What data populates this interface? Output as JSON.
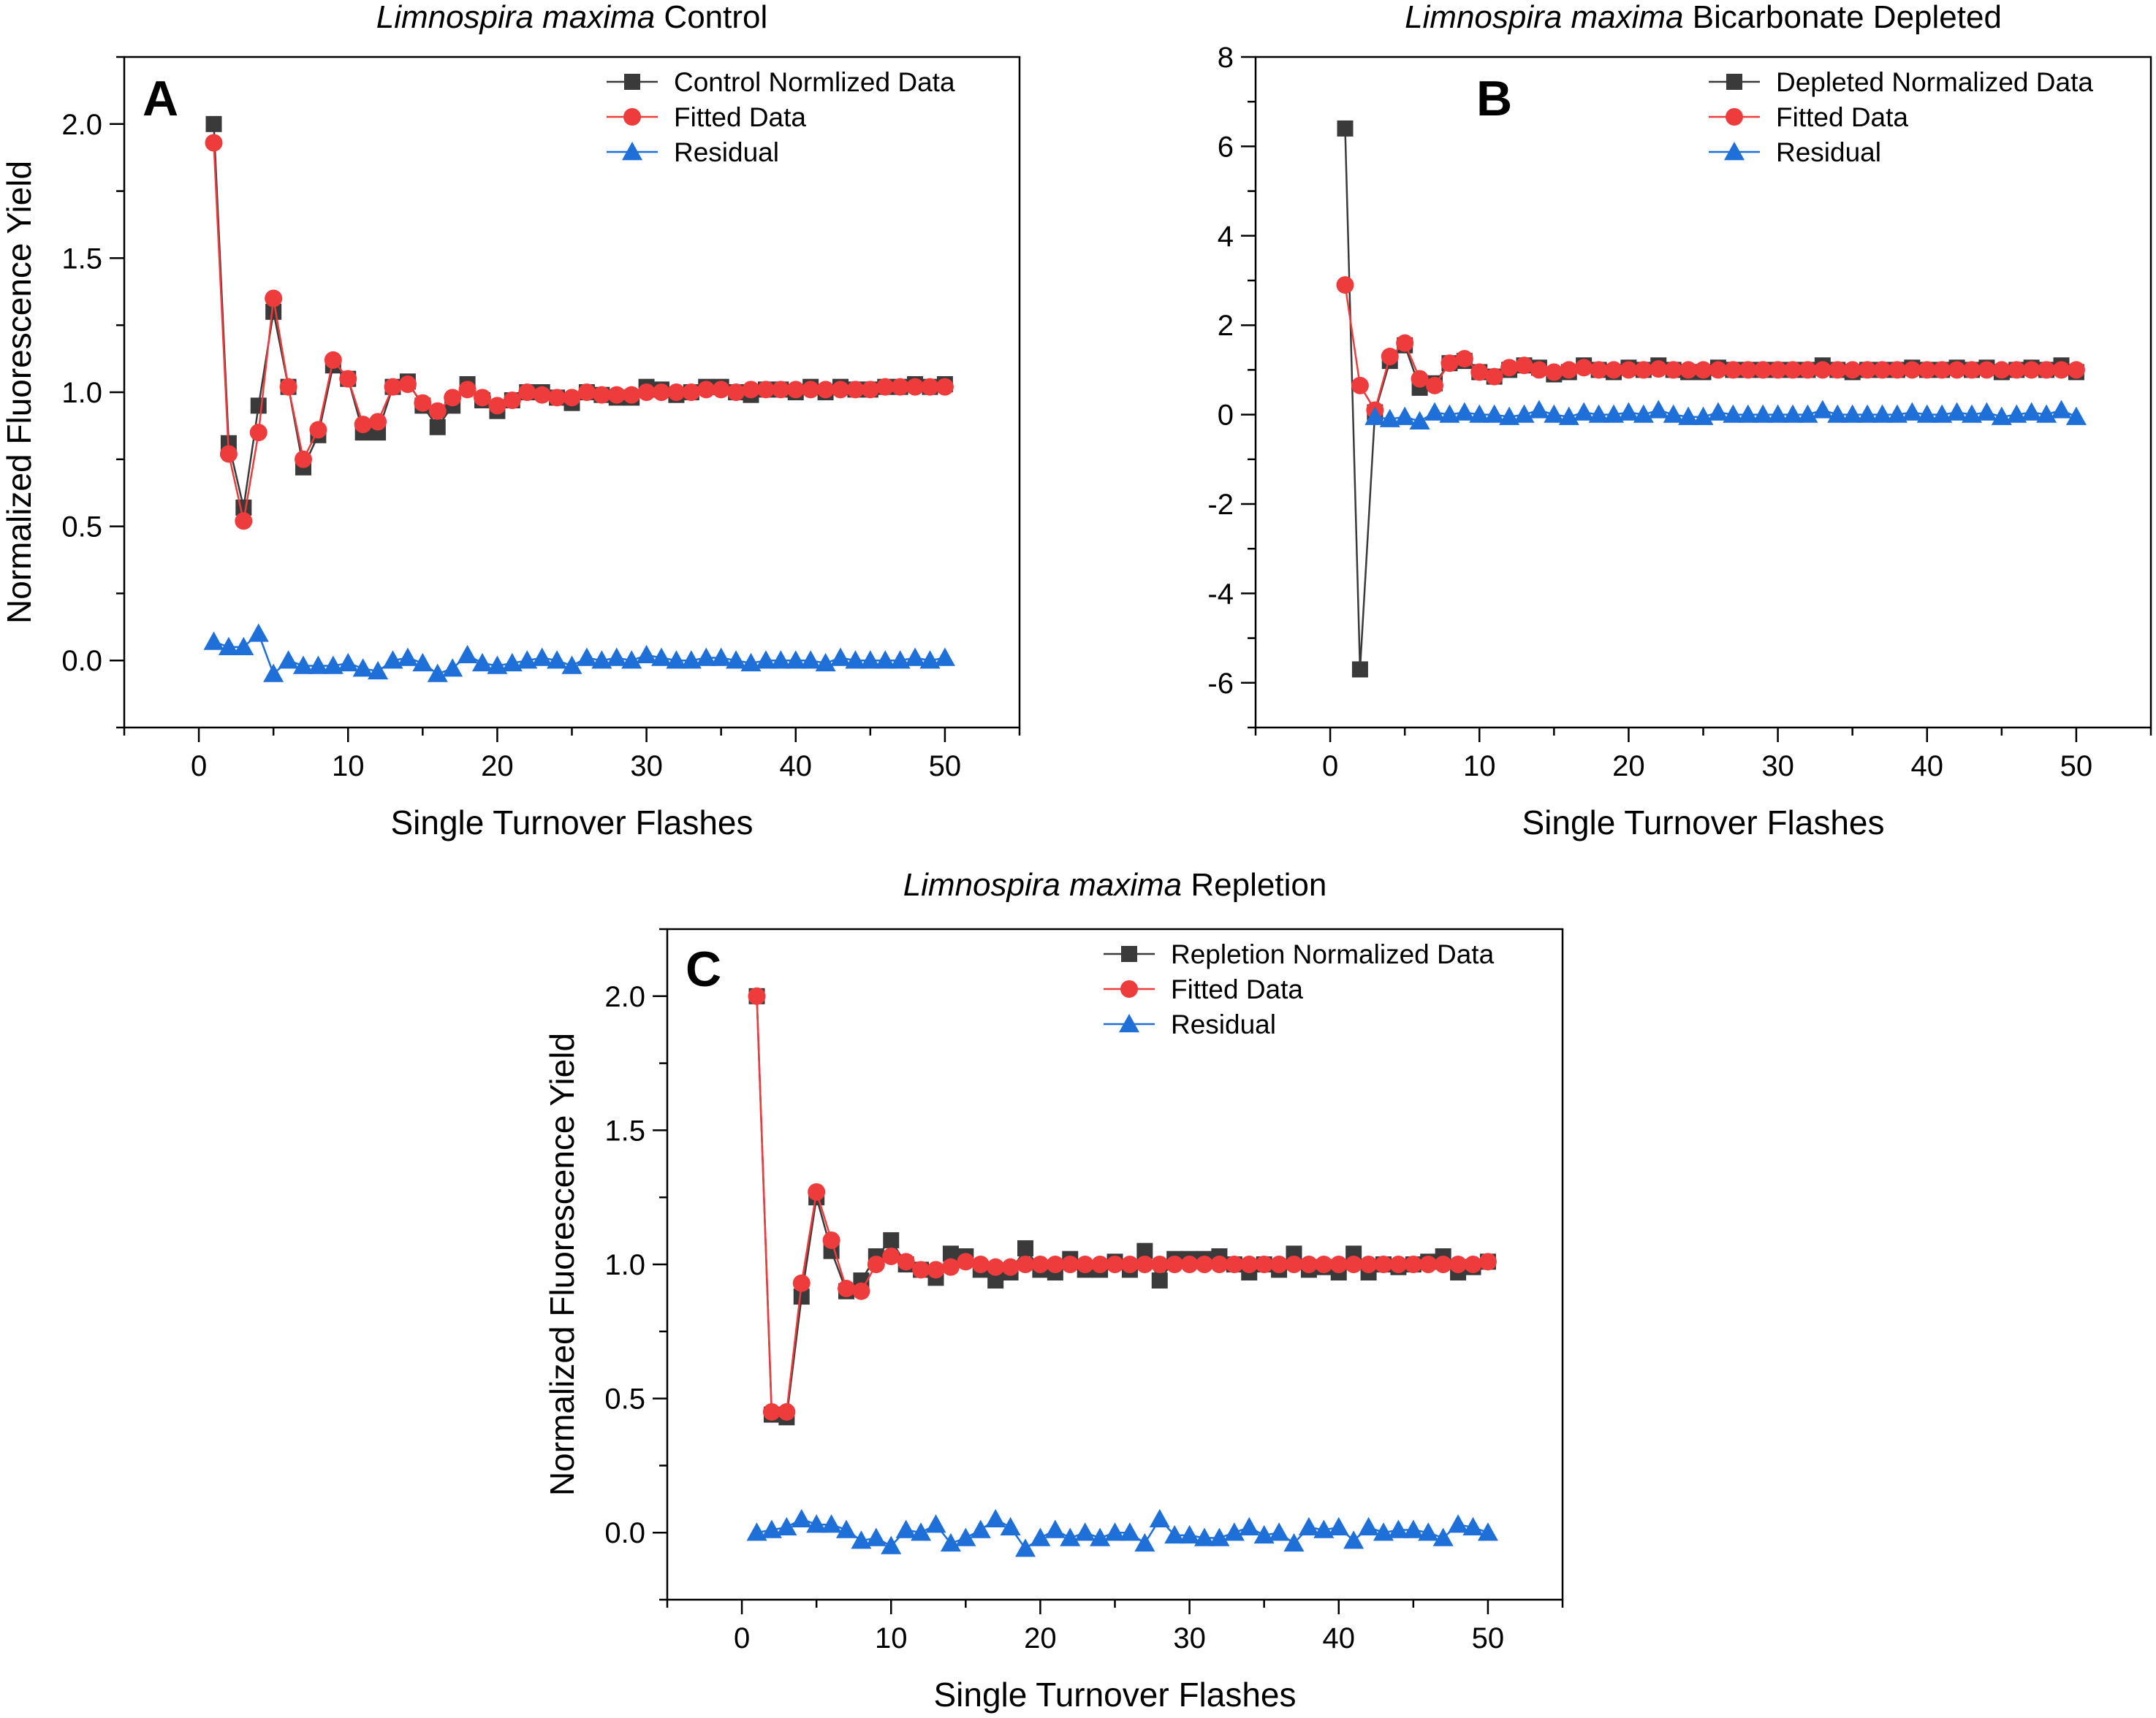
{
  "chart_data": [
    {
      "type": "scatter",
      "panel": "A",
      "title": {
        "italic": "Limnospira maxima",
        "rest": " Control"
      },
      "xlabel": "Single Turnover Flashes",
      "ylabel": "Normalized Fluorescence Yield",
      "xlim": [
        -5,
        55
      ],
      "ylim": [
        -0.25,
        2.25
      ],
      "xticks": [
        0,
        10,
        20,
        30,
        40,
        50
      ],
      "yticks": [
        0.0,
        0.5,
        1.0,
        1.5,
        2.0
      ],
      "ytick_labels": [
        "0.0",
        "0.5",
        "1.0",
        "1.5",
        "2.0"
      ],
      "legend_position": "top-right",
      "x": [
        1,
        2,
        3,
        4,
        5,
        6,
        7,
        8,
        9,
        10,
        11,
        12,
        13,
        14,
        15,
        16,
        17,
        18,
        19,
        20,
        21,
        22,
        23,
        24,
        25,
        26,
        27,
        28,
        29,
        30,
        31,
        32,
        33,
        34,
        35,
        36,
        37,
        38,
        39,
        40,
        41,
        42,
        43,
        44,
        45,
        46,
        47,
        48,
        49,
        50
      ],
      "series": [
        {
          "name": "Control Normlized Data",
          "marker": "square",
          "color": "#3a3a3a",
          "values": [
            2.0,
            0.81,
            0.57,
            0.95,
            1.3,
            1.02,
            0.72,
            0.84,
            1.1,
            1.05,
            0.85,
            0.85,
            1.02,
            1.04,
            0.95,
            0.87,
            0.95,
            1.03,
            0.97,
            0.93,
            0.97,
            1.0,
            1.0,
            0.98,
            0.96,
            1.0,
            0.99,
            0.98,
            0.98,
            1.02,
            1.01,
            0.99,
            1.0,
            1.02,
            1.02,
            1.0,
            0.99,
            1.01,
            1.01,
            1.0,
            1.02,
            1.0,
            1.02,
            1.01,
            1.01,
            1.02,
            1.02,
            1.03,
            1.02,
            1.03
          ]
        },
        {
          "name": "Fitted Data",
          "marker": "circle",
          "color": "#ee3b3b",
          "values": [
            1.93,
            0.77,
            0.52,
            0.85,
            1.35,
            1.02,
            0.75,
            0.86,
            1.12,
            1.05,
            0.88,
            0.89,
            1.02,
            1.03,
            0.96,
            0.93,
            0.98,
            1.01,
            0.98,
            0.95,
            0.97,
            1.0,
            0.99,
            0.98,
            0.98,
            1.0,
            0.99,
            0.99,
            0.99,
            1.0,
            1.0,
            1.0,
            1.0,
            1.01,
            1.01,
            1.0,
            1.01,
            1.01,
            1.01,
            1.01,
            1.01,
            1.01,
            1.01,
            1.01,
            1.01,
            1.02,
            1.02,
            1.02,
            1.02,
            1.02
          ]
        },
        {
          "name": "Residual",
          "marker": "triangle",
          "color": "#1f6fd8",
          "values": [
            0.07,
            0.05,
            0.05,
            0.1,
            -0.05,
            0.0,
            -0.02,
            -0.02,
            -0.02,
            -0.01,
            -0.03,
            -0.04,
            0.0,
            0.01,
            -0.01,
            -0.05,
            -0.03,
            0.02,
            -0.01,
            -0.02,
            -0.01,
            0.0,
            0.01,
            0.0,
            -0.02,
            0.01,
            0.0,
            0.01,
            0.0,
            0.02,
            0.01,
            0.0,
            0.0,
            0.01,
            0.01,
            0.0,
            -0.01,
            0.0,
            0.0,
            0.0,
            0.0,
            -0.01,
            0.01,
            0.0,
            0.0,
            0.0,
            0.0,
            0.01,
            0.0,
            0.01
          ]
        }
      ]
    },
    {
      "type": "scatter",
      "panel": "B",
      "title": {
        "italic": "Limnospira maxima",
        "rest": " Bicarbonate Depleted"
      },
      "xlabel": "Single Turnover Flashes",
      "ylabel": "",
      "xlim": [
        -5,
        55
      ],
      "ylim": [
        -7,
        8
      ],
      "xticks": [
        0,
        10,
        20,
        30,
        40,
        50
      ],
      "yticks": [
        -6,
        -4,
        -2,
        0,
        2,
        4,
        6,
        8
      ],
      "ytick_labels": [
        "-6",
        "-4",
        "-2",
        "0",
        "2",
        "4",
        "6",
        "8"
      ],
      "legend_position": "top-right",
      "x": [
        1,
        2,
        3,
        4,
        5,
        6,
        7,
        8,
        9,
        10,
        11,
        12,
        13,
        14,
        15,
        16,
        17,
        18,
        19,
        20,
        21,
        22,
        23,
        24,
        25,
        26,
        27,
        28,
        29,
        30,
        31,
        32,
        33,
        34,
        35,
        36,
        37,
        38,
        39,
        40,
        41,
        42,
        43,
        44,
        45,
        46,
        47,
        48,
        49,
        50
      ],
      "series": [
        {
          "name": "Depleted Normalized Data",
          "marker": "square",
          "color": "#3a3a3a",
          "values": [
            6.4,
            -5.7,
            0.05,
            1.2,
            1.55,
            0.6,
            0.7,
            1.15,
            1.2,
            0.95,
            0.85,
            1.0,
            1.1,
            1.05,
            0.9,
            0.95,
            1.1,
            1.0,
            0.95,
            1.05,
            1.0,
            1.1,
            1.0,
            0.95,
            0.95,
            1.05,
            1.0,
            1.0,
            1.0,
            1.0,
            1.0,
            1.0,
            1.1,
            1.0,
            0.95,
            1.0,
            1.0,
            1.0,
            1.05,
            1.0,
            1.0,
            1.05,
            1.0,
            1.05,
            0.95,
            1.0,
            1.05,
            1.0,
            1.1,
            0.95
          ]
        },
        {
          "name": "Fitted Data",
          "marker": "circle",
          "color": "#ee3b3b",
          "values": [
            2.9,
            0.65,
            0.1,
            1.3,
            1.6,
            0.8,
            0.65,
            1.15,
            1.25,
            0.95,
            0.85,
            1.05,
            1.1,
            1.0,
            0.95,
            1.0,
            1.05,
            1.0,
            1.0,
            1.0,
            1.0,
            1.02,
            1.0,
            1.0,
            1.0,
            1.0,
            1.0,
            1.0,
            1.0,
            1.0,
            1.0,
            1.0,
            1.0,
            1.0,
            1.0,
            1.0,
            1.0,
            1.0,
            1.0,
            1.0,
            1.0,
            1.0,
            1.0,
            1.0,
            1.0,
            1.0,
            1.0,
            1.0,
            1.0,
            1.0
          ]
        },
        {
          "name": "Residual",
          "marker": "triangle",
          "color": "#1f6fd8",
          "values": [
            null,
            null,
            -0.05,
            -0.1,
            -0.05,
            -0.15,
            0.05,
            0.0,
            0.05,
            0.0,
            0.0,
            -0.05,
            0.0,
            0.1,
            0.0,
            -0.05,
            0.05,
            0.0,
            0.0,
            0.05,
            0.0,
            0.1,
            0.0,
            -0.05,
            -0.05,
            0.05,
            0.0,
            0.0,
            0.0,
            0.0,
            0.0,
            0.0,
            0.1,
            0.0,
            0.0,
            0.0,
            0.0,
            0.0,
            0.05,
            0.0,
            0.0,
            0.05,
            0.0,
            0.05,
            -0.05,
            0.0,
            0.05,
            0.0,
            0.1,
            -0.05
          ]
        }
      ]
    },
    {
      "type": "scatter",
      "panel": "C",
      "title": {
        "italic": "Limnospira maxima",
        "rest": " Repletion"
      },
      "xlabel": "Single Turnover Flashes",
      "ylabel": "Normalized Fluorescence Yield",
      "xlim": [
        -5,
        55
      ],
      "ylim": [
        -0.25,
        2.25
      ],
      "xticks": [
        0,
        10,
        20,
        30,
        40,
        50
      ],
      "yticks": [
        0.0,
        0.5,
        1.0,
        1.5,
        2.0
      ],
      "ytick_labels": [
        "0.0",
        "0.5",
        "1.0",
        "1.5",
        "2.0"
      ],
      "legend_position": "top-right",
      "x": [
        1,
        2,
        3,
        4,
        5,
        6,
        7,
        8,
        9,
        10,
        11,
        12,
        13,
        14,
        15,
        16,
        17,
        18,
        19,
        20,
        21,
        22,
        23,
        24,
        25,
        26,
        27,
        28,
        29,
        30,
        31,
        32,
        33,
        34,
        35,
        36,
        37,
        38,
        39,
        40,
        41,
        42,
        43,
        44,
        45,
        46,
        47,
        48,
        49,
        50
      ],
      "series": [
        {
          "name": "Repletion Normalized Data",
          "marker": "square",
          "color": "#3a3a3a",
          "values": [
            2.0,
            0.44,
            0.43,
            0.88,
            1.25,
            1.05,
            0.9,
            0.94,
            1.03,
            1.09,
            1.0,
            0.98,
            0.95,
            1.04,
            1.03,
            0.98,
            0.94,
            0.97,
            1.06,
            0.98,
            0.97,
            1.02,
            0.98,
            0.98,
            1.01,
            0.98,
            1.05,
            0.94,
            1.02,
            1.02,
            1.02,
            1.03,
            1.0,
            0.97,
            1.0,
            0.98,
            1.04,
            0.98,
            0.99,
            0.97,
            1.04,
            0.97,
            1.0,
            0.99,
            1.0,
            1.01,
            1.03,
            0.97,
            0.99,
            1.01
          ]
        },
        {
          "name": "Fitted Data",
          "marker": "circle",
          "color": "#ee3b3b",
          "values": [
            2.0,
            0.45,
            0.45,
            0.93,
            1.27,
            1.09,
            0.91,
            0.9,
            1.0,
            1.03,
            1.01,
            0.98,
            0.98,
            0.99,
            1.01,
            1.0,
            0.99,
            0.99,
            1.0,
            1.0,
            1.0,
            1.0,
            1.0,
            1.0,
            1.0,
            1.0,
            1.0,
            1.0,
            1.0,
            1.0,
            1.0,
            1.0,
            1.0,
            1.0,
            1.0,
            1.0,
            1.0,
            1.0,
            1.0,
            1.0,
            1.0,
            1.0,
            1.0,
            1.0,
            1.0,
            1.0,
            1.0,
            1.0,
            1.0,
            1.01
          ]
        },
        {
          "name": "Residual",
          "marker": "triangle",
          "color": "#1f6fd8",
          "values": [
            0.0,
            0.01,
            0.02,
            0.05,
            0.03,
            0.03,
            0.01,
            -0.03,
            -0.02,
            -0.05,
            0.01,
            0.0,
            0.03,
            -0.04,
            -0.02,
            0.01,
            0.05,
            0.02,
            -0.06,
            -0.02,
            0.01,
            -0.02,
            0.0,
            -0.02,
            0.0,
            0.0,
            -0.04,
            0.05,
            -0.01,
            -0.01,
            -0.02,
            -0.02,
            0.0,
            0.02,
            -0.01,
            0.0,
            -0.04,
            0.02,
            0.01,
            0.02,
            -0.03,
            0.02,
            0.0,
            0.01,
            0.01,
            0.0,
            -0.02,
            0.03,
            0.02,
            0.0
          ]
        }
      ]
    }
  ]
}
